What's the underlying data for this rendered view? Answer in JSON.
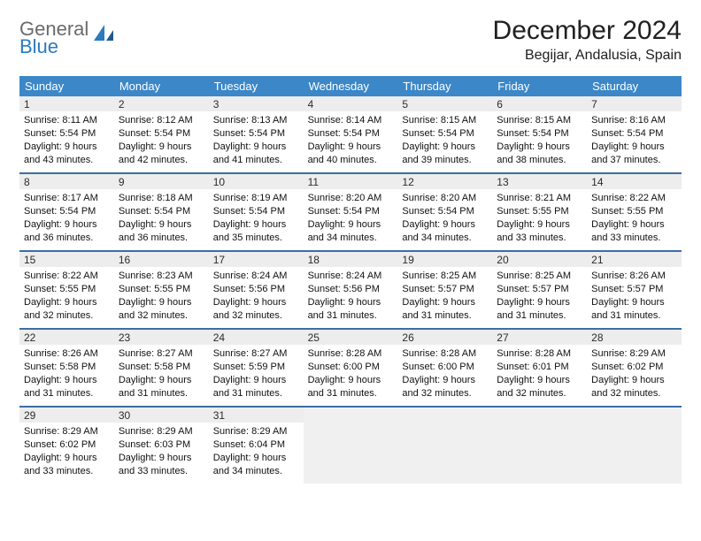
{
  "logo": {
    "top": "General",
    "bottom": "Blue"
  },
  "title": "December 2024",
  "location": "Begijar, Andalusia, Spain",
  "colors": {
    "header_bg": "#3b87c8",
    "week_divider": "#3b6ea5",
    "daynum_bg": "#ededed",
    "empty_bg": "#f0f0f0",
    "logo_gray": "#6b6b6b",
    "logo_blue": "#2b7bbf"
  },
  "daynames": [
    "Sunday",
    "Monday",
    "Tuesday",
    "Wednesday",
    "Thursday",
    "Friday",
    "Saturday"
  ],
  "days": [
    {
      "n": "1",
      "sr": "8:11 AM",
      "ss": "5:54 PM",
      "dl": "9 hours and 43 minutes."
    },
    {
      "n": "2",
      "sr": "8:12 AM",
      "ss": "5:54 PM",
      "dl": "9 hours and 42 minutes."
    },
    {
      "n": "3",
      "sr": "8:13 AM",
      "ss": "5:54 PM",
      "dl": "9 hours and 41 minutes."
    },
    {
      "n": "4",
      "sr": "8:14 AM",
      "ss": "5:54 PM",
      "dl": "9 hours and 40 minutes."
    },
    {
      "n": "5",
      "sr": "8:15 AM",
      "ss": "5:54 PM",
      "dl": "9 hours and 39 minutes."
    },
    {
      "n": "6",
      "sr": "8:15 AM",
      "ss": "5:54 PM",
      "dl": "9 hours and 38 minutes."
    },
    {
      "n": "7",
      "sr": "8:16 AM",
      "ss": "5:54 PM",
      "dl": "9 hours and 37 minutes."
    },
    {
      "n": "8",
      "sr": "8:17 AM",
      "ss": "5:54 PM",
      "dl": "9 hours and 36 minutes."
    },
    {
      "n": "9",
      "sr": "8:18 AM",
      "ss": "5:54 PM",
      "dl": "9 hours and 36 minutes."
    },
    {
      "n": "10",
      "sr": "8:19 AM",
      "ss": "5:54 PM",
      "dl": "9 hours and 35 minutes."
    },
    {
      "n": "11",
      "sr": "8:20 AM",
      "ss": "5:54 PM",
      "dl": "9 hours and 34 minutes."
    },
    {
      "n": "12",
      "sr": "8:20 AM",
      "ss": "5:54 PM",
      "dl": "9 hours and 34 minutes."
    },
    {
      "n": "13",
      "sr": "8:21 AM",
      "ss": "5:55 PM",
      "dl": "9 hours and 33 minutes."
    },
    {
      "n": "14",
      "sr": "8:22 AM",
      "ss": "5:55 PM",
      "dl": "9 hours and 33 minutes."
    },
    {
      "n": "15",
      "sr": "8:22 AM",
      "ss": "5:55 PM",
      "dl": "9 hours and 32 minutes."
    },
    {
      "n": "16",
      "sr": "8:23 AM",
      "ss": "5:55 PM",
      "dl": "9 hours and 32 minutes."
    },
    {
      "n": "17",
      "sr": "8:24 AM",
      "ss": "5:56 PM",
      "dl": "9 hours and 32 minutes."
    },
    {
      "n": "18",
      "sr": "8:24 AM",
      "ss": "5:56 PM",
      "dl": "9 hours and 31 minutes."
    },
    {
      "n": "19",
      "sr": "8:25 AM",
      "ss": "5:57 PM",
      "dl": "9 hours and 31 minutes."
    },
    {
      "n": "20",
      "sr": "8:25 AM",
      "ss": "5:57 PM",
      "dl": "9 hours and 31 minutes."
    },
    {
      "n": "21",
      "sr": "8:26 AM",
      "ss": "5:57 PM",
      "dl": "9 hours and 31 minutes."
    },
    {
      "n": "22",
      "sr": "8:26 AM",
      "ss": "5:58 PM",
      "dl": "9 hours and 31 minutes."
    },
    {
      "n": "23",
      "sr": "8:27 AM",
      "ss": "5:58 PM",
      "dl": "9 hours and 31 minutes."
    },
    {
      "n": "24",
      "sr": "8:27 AM",
      "ss": "5:59 PM",
      "dl": "9 hours and 31 minutes."
    },
    {
      "n": "25",
      "sr": "8:28 AM",
      "ss": "6:00 PM",
      "dl": "9 hours and 31 minutes."
    },
    {
      "n": "26",
      "sr": "8:28 AM",
      "ss": "6:00 PM",
      "dl": "9 hours and 32 minutes."
    },
    {
      "n": "27",
      "sr": "8:28 AM",
      "ss": "6:01 PM",
      "dl": "9 hours and 32 minutes."
    },
    {
      "n": "28",
      "sr": "8:29 AM",
      "ss": "6:02 PM",
      "dl": "9 hours and 32 minutes."
    },
    {
      "n": "29",
      "sr": "8:29 AM",
      "ss": "6:02 PM",
      "dl": "9 hours and 33 minutes."
    },
    {
      "n": "30",
      "sr": "8:29 AM",
      "ss": "6:03 PM",
      "dl": "9 hours and 33 minutes."
    },
    {
      "n": "31",
      "sr": "8:29 AM",
      "ss": "6:04 PM",
      "dl": "9 hours and 34 minutes."
    }
  ],
  "labels": {
    "sunrise": "Sunrise:",
    "sunset": "Sunset:",
    "daylight": "Daylight:"
  },
  "grid": {
    "leading_blanks": 0,
    "trailing_blanks": 4,
    "weeks": 5
  }
}
